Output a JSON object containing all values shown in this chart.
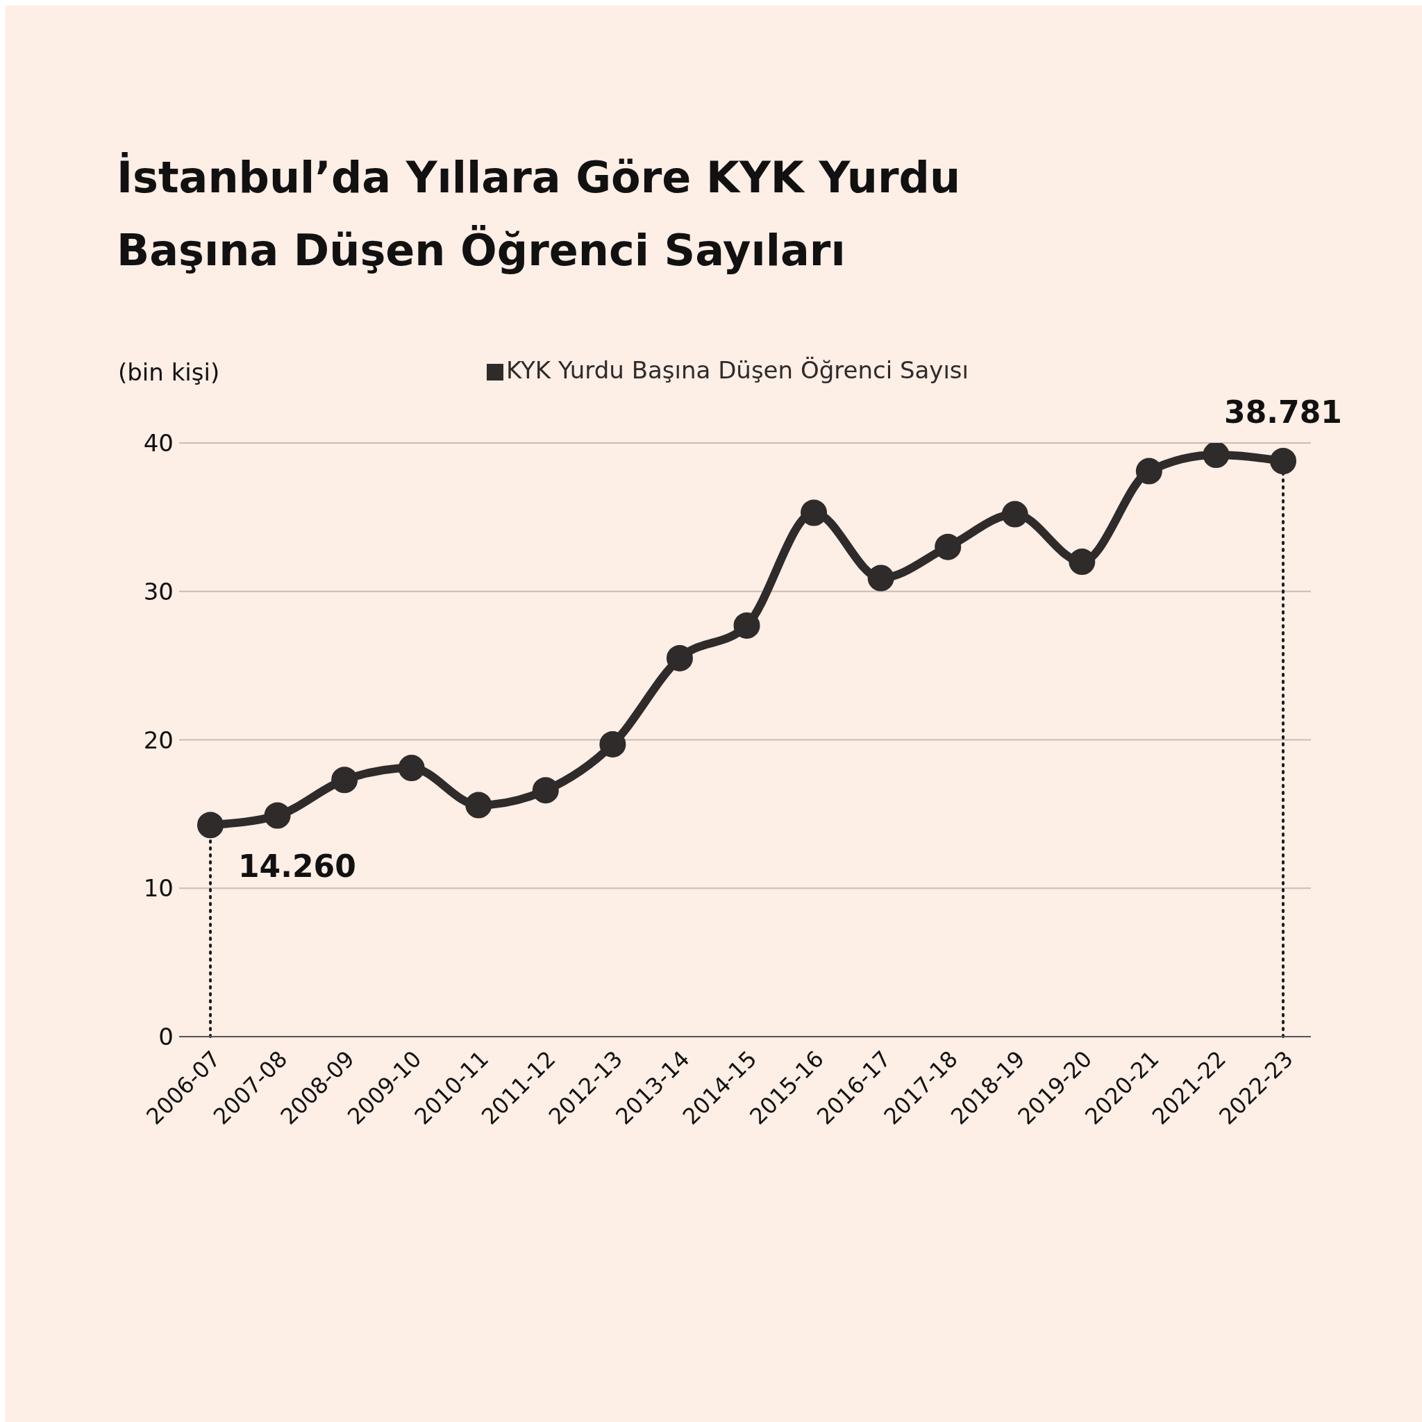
{
  "chart_data": {
    "type": "line",
    "title": "İstanbul’da Yıllara Göre KYK Yurdu Başına Düşen Öğrenci Sayıları",
    "ylabel": "(bin kişi)",
    "categories": [
      "2006-07",
      "2007-08",
      "2008-09",
      "2009-10",
      "2010-11",
      "2011-12",
      "2012-13",
      "2013-14",
      "2014-15",
      "2015-16",
      "2016-17",
      "2017-18",
      "2018-19",
      "2019-20",
      "2020-21",
      "2021-22",
      "2022-23"
    ],
    "series": [
      {
        "name": "KYK Yurdu Başına Düşen Öğrenci Sayısı",
        "color": "#2e2b2a",
        "values": [
          14.26,
          14.9,
          17.3,
          18.1,
          15.6,
          16.6,
          19.7,
          25.5,
          27.7,
          35.3,
          30.9,
          33.0,
          35.2,
          32.0,
          38.1,
          39.2,
          38.781
        ],
        "value_labels": [
          "14.260",
          null,
          null,
          null,
          null,
          null,
          null,
          null,
          null,
          null,
          null,
          null,
          null,
          null,
          null,
          null,
          "38.781"
        ]
      }
    ],
    "ylim": [
      0,
      40
    ],
    "yticks": [
      0,
      10,
      20,
      30,
      40
    ],
    "grid": "y",
    "legend": "top",
    "marker": "circle",
    "line_style": "solid",
    "ref_lines": [
      {
        "axis": "x",
        "value": "2006-07",
        "line_style": "dotted",
        "color": "#1a1a1a"
      },
      {
        "axis": "x",
        "value": "2022-23",
        "line_style": "dotted",
        "color": "#1a1a1a"
      }
    ]
  }
}
